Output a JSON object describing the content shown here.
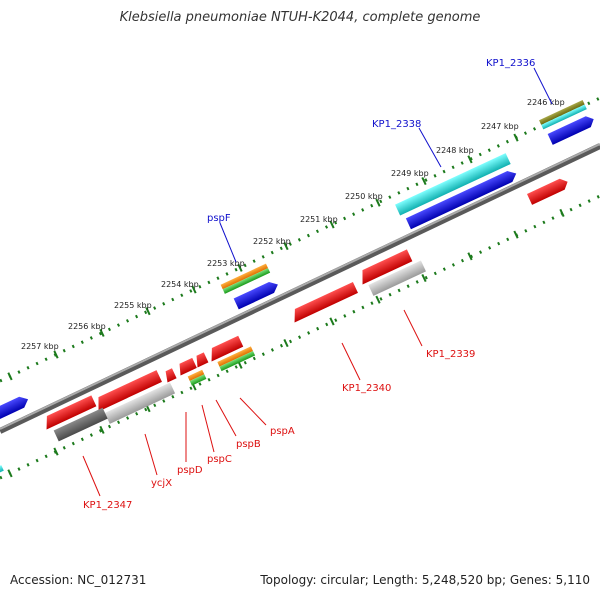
{
  "title": "Klebsiella pneumoniae NTUH-K2044, complete genome",
  "footer": {
    "accession": "Accession: NC_012731",
    "summary": "Topology: circular; Length: 5,248,520 bp; Genes: 5,110"
  },
  "ticks": [
    "2246 kbp",
    "2247 kbp",
    "2248 kbp",
    "2249 kbp",
    "2250 kbp",
    "2251 kbp",
    "2252 kbp",
    "2253 kbp",
    "2254 kbp",
    "2255 kbp",
    "2256 kbp",
    "2257 kbp"
  ],
  "forward_labels": [
    "KP1_2336",
    "KP1_2338",
    "pspF"
  ],
  "reverse_labels": [
    "KP1_2339",
    "KP1_2340",
    "pspA",
    "pspB",
    "pspC",
    "pspD",
    "ycjX",
    "KP1_2347"
  ],
  "colors": {
    "cds_forward": "#1010d8",
    "cds_reverse": "#f01010",
    "cds_grey": "#9a9a9a",
    "rna_cyan": "#19c8c8",
    "track_green": "#1c7a1c",
    "backbone": "#777777",
    "label_forward": "#1010cc",
    "label_reverse": "#dd1010"
  }
}
